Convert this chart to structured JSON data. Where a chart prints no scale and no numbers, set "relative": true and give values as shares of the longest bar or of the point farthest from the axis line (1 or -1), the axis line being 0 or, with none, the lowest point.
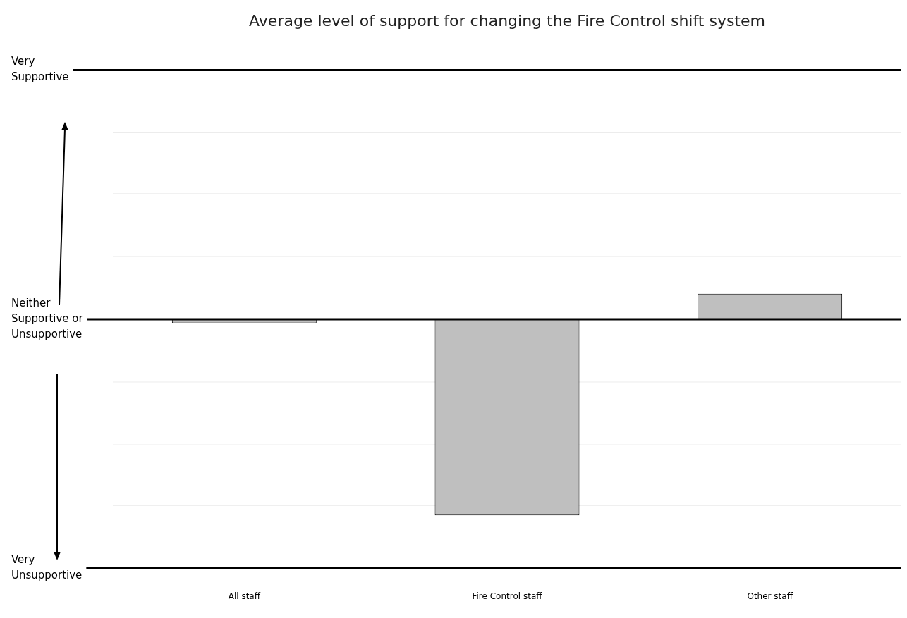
{
  "chart_data": {
    "type": "bar",
    "title": "Average level of support for changing the Fire Control shift system",
    "categories": [
      "All staff",
      "Fire Control staff",
      "Other staff"
    ],
    "values": [
      -0.02,
      -1,
      0.13
    ],
    "color": "#bfbfbf",
    "relative": true,
    "ref_lines": [
      {
        "axis": "y",
        "value": 1.27,
        "label": "Very Supportive",
        "color": "#000000"
      },
      {
        "axis": "y",
        "value": 0.95,
        "color": "#ececec"
      },
      {
        "axis": "y",
        "value": 0.64,
        "color": "#ececec"
      },
      {
        "axis": "y",
        "value": 0.32,
        "color": "#ececec"
      },
      {
        "axis": "y",
        "value": 0,
        "label": "Neither Supportive or Unsupportive",
        "color": "#000000"
      },
      {
        "axis": "y",
        "value": -0.32,
        "color": "#ececec"
      },
      {
        "axis": "y",
        "value": -0.64,
        "color": "#ececec"
      },
      {
        "axis": "y",
        "value": -0.95,
        "color": "#ececec"
      },
      {
        "axis": "y",
        "value": -1.27,
        "label": "Very Unsupportive",
        "color": "#000000"
      }
    ],
    "legend": false
  }
}
